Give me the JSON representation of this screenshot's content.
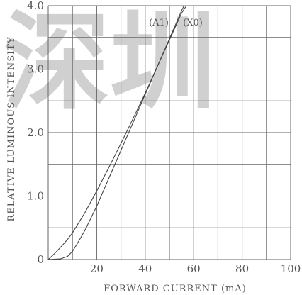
{
  "watermark": "深圳",
  "colors": {
    "grid": "#666666",
    "curve": "#444444",
    "text": "#555555",
    "watermark": "#c8c8c8"
  },
  "chart_data": {
    "type": "line",
    "title": "",
    "xlabel": "FORWARD CURRENT (mA)",
    "ylabel": "RELATIVE LUMINOUS INTENSITY",
    "xlim": [
      0,
      100
    ],
    "ylim": [
      0,
      4.0
    ],
    "x_ticks": [
      {
        "value": 0,
        "label": ""
      },
      {
        "value": 20,
        "label": "20"
      },
      {
        "value": 40,
        "label": "40"
      },
      {
        "value": 60,
        "label": "60"
      },
      {
        "value": 80,
        "label": "80"
      },
      {
        "value": 100,
        "label": "100"
      }
    ],
    "y_ticks": [
      {
        "value": 0,
        "label": "0"
      },
      {
        "value": 1.0,
        "label": "1.0"
      },
      {
        "value": 2.0,
        "label": "2.0"
      },
      {
        "value": 3.0,
        "label": "3.0"
      },
      {
        "value": 4.0,
        "label": "4.0"
      }
    ],
    "grid": true,
    "x_grid_step": 10,
    "y_grid_step": 0.5,
    "series": [
      {
        "name": "(A1)",
        "x": [
          0,
          2,
          4,
          6,
          8,
          10,
          15,
          20,
          25,
          30,
          35,
          40,
          45,
          50,
          55,
          57
        ],
        "y": [
          0,
          0.07,
          0.15,
          0.23,
          0.32,
          0.42,
          0.73,
          1.08,
          1.45,
          1.83,
          2.22,
          2.62,
          3.04,
          3.46,
          3.88,
          4.0
        ]
      },
      {
        "name": "(X0)",
        "x": [
          0,
          5,
          8,
          10,
          12,
          15,
          20,
          25,
          30,
          35,
          40,
          45,
          50,
          55,
          56
        ],
        "y": [
          0,
          0.01,
          0.05,
          0.13,
          0.25,
          0.45,
          0.84,
          1.28,
          1.72,
          2.16,
          2.6,
          3.04,
          3.48,
          3.92,
          4.0
        ]
      }
    ]
  }
}
